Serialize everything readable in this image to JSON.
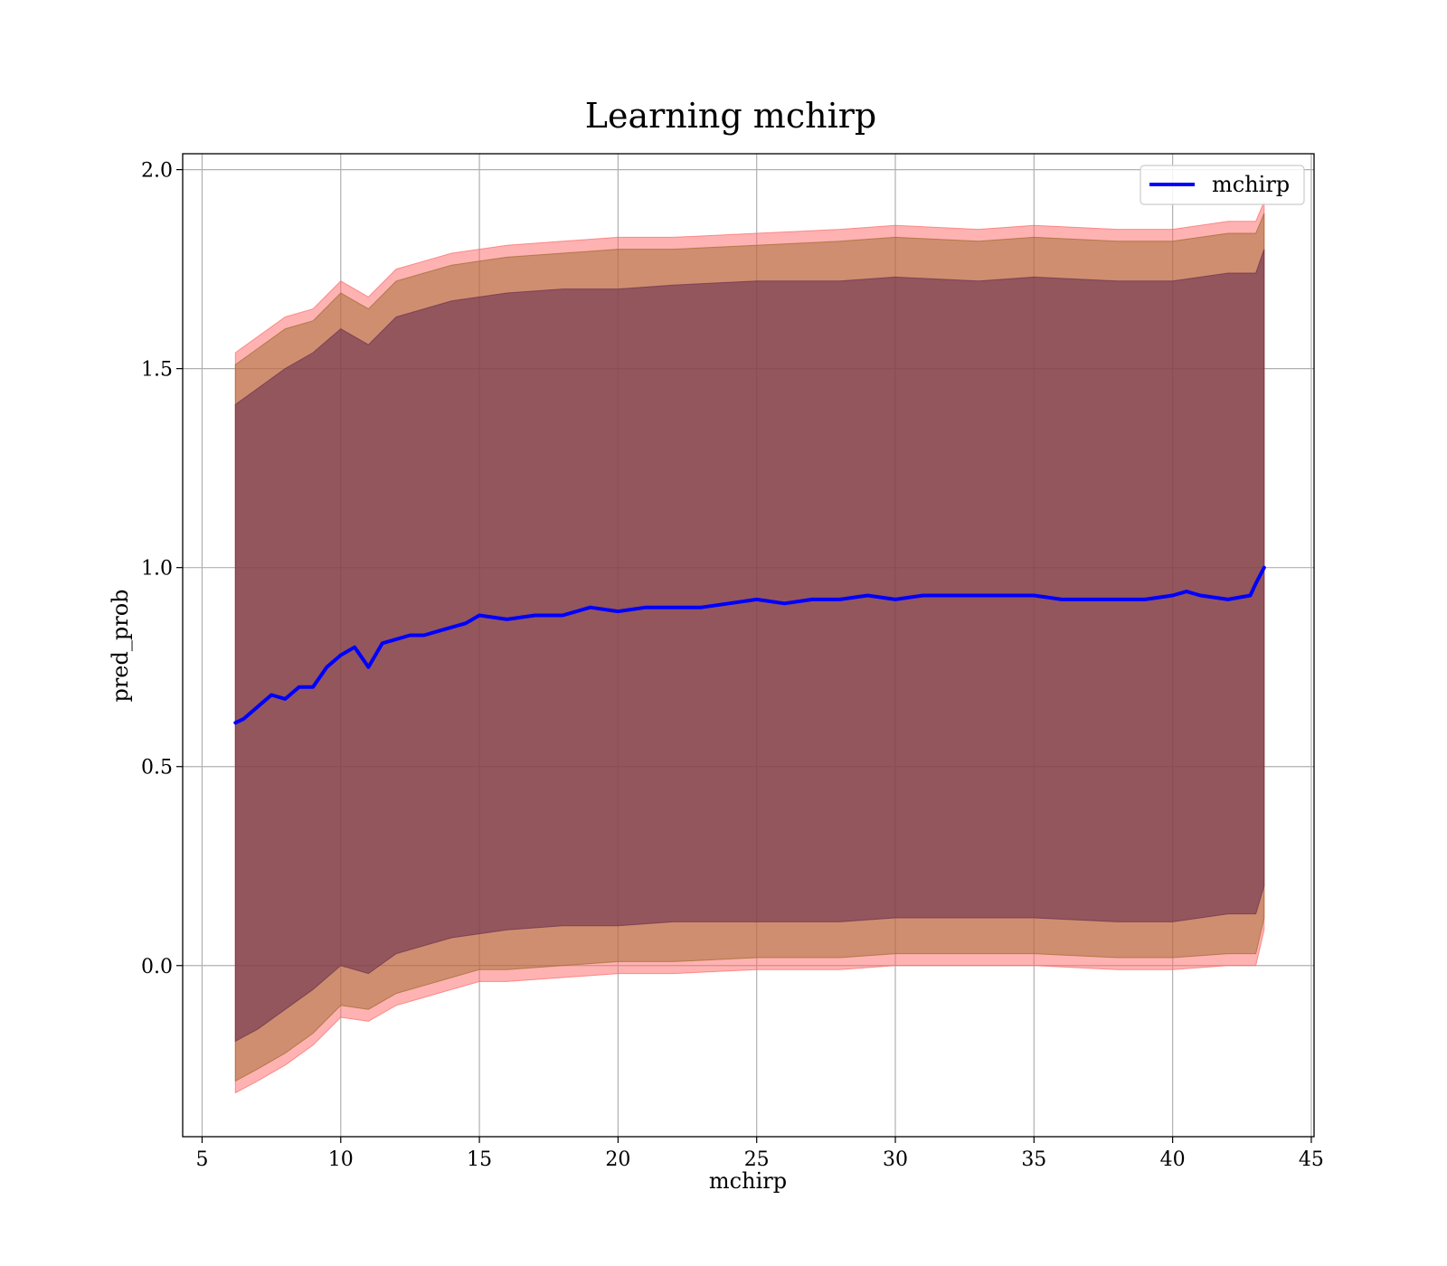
{
  "chart_data": {
    "type": "line",
    "title": "Learning mchirp",
    "xlabel": "mchirp",
    "ylabel": "pred_prob",
    "xlim": [
      4.3,
      45.1
    ],
    "ylim": [
      -0.43,
      2.04
    ],
    "xticks": [
      5,
      10,
      15,
      20,
      25,
      30,
      35,
      40,
      45
    ],
    "yticks": [
      0.0,
      0.5,
      1.0,
      1.5,
      2.0
    ],
    "xtick_labels": [
      "5",
      "10",
      "15",
      "20",
      "25",
      "30",
      "35",
      "40",
      "45"
    ],
    "ytick_labels": [
      "0.0",
      "0.5",
      "1.0",
      "1.5",
      "2.0"
    ],
    "grid": true,
    "legend_position": "top-right",
    "series": [
      {
        "name": "mchirp",
        "color": "#0000ff",
        "x": [
          6.2,
          6.5,
          7.0,
          7.5,
          8.0,
          8.5,
          9.0,
          9.5,
          10.0,
          10.5,
          11.0,
          11.5,
          12.0,
          12.5,
          13.0,
          13.5,
          14.0,
          14.5,
          15.0,
          16.0,
          17.0,
          18.0,
          19.0,
          20.0,
          21.0,
          22.0,
          23.0,
          24.0,
          25.0,
          26.0,
          27.0,
          28.0,
          29.0,
          30.0,
          31.0,
          32.0,
          33.0,
          34.0,
          35.0,
          36.0,
          37.0,
          38.0,
          39.0,
          40.0,
          40.5,
          41.0,
          42.0,
          42.8,
          43.0,
          43.3
        ],
        "y": [
          0.61,
          0.62,
          0.65,
          0.68,
          0.67,
          0.7,
          0.7,
          0.75,
          0.78,
          0.8,
          0.75,
          0.81,
          0.82,
          0.83,
          0.83,
          0.84,
          0.85,
          0.86,
          0.88,
          0.87,
          0.88,
          0.88,
          0.9,
          0.89,
          0.9,
          0.9,
          0.9,
          0.91,
          0.92,
          0.91,
          0.92,
          0.92,
          0.93,
          0.92,
          0.93,
          0.93,
          0.93,
          0.93,
          0.93,
          0.92,
          0.92,
          0.92,
          0.92,
          0.93,
          0.94,
          0.93,
          0.92,
          0.93,
          0.96,
          1.0
        ]
      }
    ],
    "bands": [
      {
        "color": "#ff6666",
        "opacity": 0.5,
        "x": [
          6.2,
          7.0,
          8.0,
          9.0,
          10.0,
          11.0,
          12.0,
          13.0,
          14.0,
          15.0,
          16.0,
          18.0,
          20.0,
          22.0,
          25.0,
          28.0,
          30.0,
          33.0,
          35.0,
          38.0,
          40.0,
          42.0,
          43.0,
          43.3
        ],
        "lower": [
          -0.32,
          -0.29,
          -0.25,
          -0.2,
          -0.13,
          -0.14,
          -0.1,
          -0.08,
          -0.06,
          -0.04,
          -0.04,
          -0.03,
          -0.02,
          -0.02,
          -0.01,
          -0.01,
          0.0,
          0.0,
          0.0,
          -0.01,
          -0.01,
          0.0,
          0.0,
          0.09
        ],
        "upper": [
          1.54,
          1.58,
          1.63,
          1.65,
          1.72,
          1.68,
          1.75,
          1.77,
          1.79,
          1.8,
          1.81,
          1.82,
          1.83,
          1.83,
          1.84,
          1.85,
          1.86,
          1.85,
          1.86,
          1.85,
          1.85,
          1.87,
          1.87,
          1.92
        ]
      },
      {
        "color": "#a06a2e",
        "opacity": 0.5,
        "x": [
          6.2,
          7.0,
          8.0,
          9.0,
          10.0,
          11.0,
          12.0,
          13.0,
          14.0,
          15.0,
          16.0,
          18.0,
          20.0,
          22.0,
          25.0,
          28.0,
          30.0,
          33.0,
          35.0,
          38.0,
          40.0,
          42.0,
          43.0,
          43.3
        ],
        "lower": [
          -0.29,
          -0.26,
          -0.22,
          -0.17,
          -0.1,
          -0.11,
          -0.07,
          -0.05,
          -0.03,
          -0.01,
          -0.01,
          0.0,
          0.01,
          0.01,
          0.02,
          0.02,
          0.03,
          0.03,
          0.03,
          0.02,
          0.02,
          0.03,
          0.03,
          0.12
        ],
        "upper": [
          1.51,
          1.55,
          1.6,
          1.62,
          1.69,
          1.65,
          1.72,
          1.74,
          1.76,
          1.77,
          1.78,
          1.79,
          1.8,
          1.8,
          1.81,
          1.82,
          1.83,
          1.82,
          1.83,
          1.82,
          1.82,
          1.84,
          1.84,
          1.89
        ]
      },
      {
        "color": "#6b3050",
        "opacity": 0.6,
        "x": [
          6.2,
          7.0,
          8.0,
          9.0,
          10.0,
          11.0,
          12.0,
          13.0,
          14.0,
          15.0,
          16.0,
          18.0,
          20.0,
          22.0,
          25.0,
          28.0,
          30.0,
          33.0,
          35.0,
          38.0,
          40.0,
          42.0,
          43.0,
          43.3
        ],
        "lower": [
          -0.19,
          -0.16,
          -0.11,
          -0.06,
          0.0,
          -0.02,
          0.03,
          0.05,
          0.07,
          0.08,
          0.09,
          0.1,
          0.1,
          0.11,
          0.11,
          0.11,
          0.12,
          0.12,
          0.12,
          0.11,
          0.11,
          0.13,
          0.13,
          0.2
        ],
        "upper": [
          1.41,
          1.45,
          1.5,
          1.54,
          1.6,
          1.56,
          1.63,
          1.65,
          1.67,
          1.68,
          1.69,
          1.7,
          1.7,
          1.71,
          1.72,
          1.72,
          1.73,
          1.72,
          1.73,
          1.72,
          1.72,
          1.74,
          1.74,
          1.8
        ]
      }
    ]
  }
}
